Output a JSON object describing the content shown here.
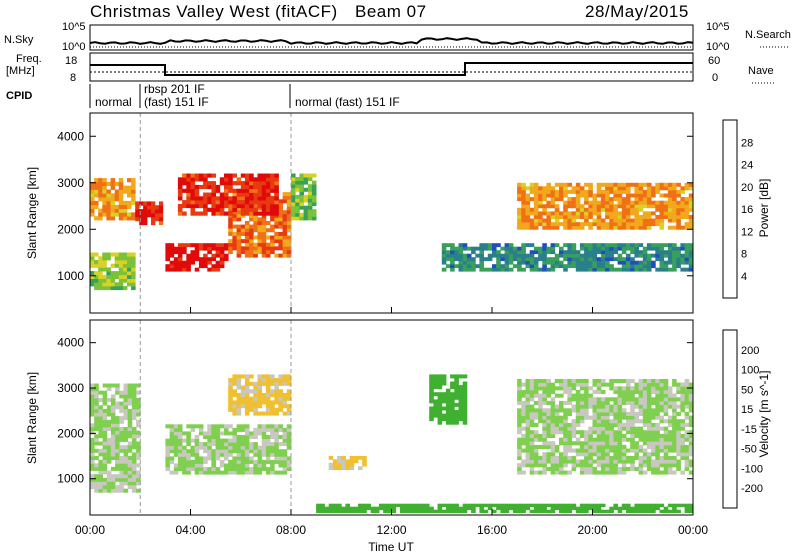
{
  "header": {
    "title": "Christmas Valley West (fitACF)",
    "beam": "Beam 07",
    "date": "28/May/2015"
  },
  "panels": {
    "nsky": {
      "label": "N.Sky",
      "right_label": "N.Search",
      "tick_top": "10^5",
      "tick_bottom": "10^0"
    },
    "freq": {
      "label_line1": "Freq.",
      "label_line2": "[MHz]",
      "right_label": "Nave",
      "left_ticks": [
        "18",
        "8"
      ],
      "right_ticks": [
        "60",
        "0"
      ]
    },
    "cpid": {
      "label": "CPID",
      "segments": [
        "normal",
        "rbsp 201 IF",
        "(fast) 151 IF",
        "normal (fast) 151 IF"
      ]
    }
  },
  "x_axis": {
    "label": "Time UT",
    "ticks": [
      "00:00",
      "04:00",
      "08:00",
      "12:00",
      "16:00",
      "20:00",
      "00:00"
    ]
  },
  "y_axis": {
    "label": "Slant Range [km]",
    "ticks": [
      "1000",
      "2000",
      "3000",
      "4000"
    ]
  },
  "colorbars": {
    "power": {
      "label": "Power [dB]",
      "ticks": [
        "4",
        "8",
        "12",
        "16",
        "20",
        "24",
        "28"
      ],
      "colors": [
        "#1010e0",
        "#1e4fbf",
        "#2a7f8c",
        "#39a05a",
        "#7cc238",
        "#d8d226",
        "#f2a81c",
        "#f07016",
        "#e83a10",
        "#e00a0a"
      ]
    },
    "velocity": {
      "label": "Velocity [m s^-1]",
      "ticks": [
        "200",
        "100",
        "50",
        "15",
        "-15",
        "-50",
        "-100",
        "-200"
      ],
      "colors": [
        "#1010d0",
        "#2050a0",
        "#208060",
        "#40b030",
        "#80d050",
        "#c8c8c0",
        "#f0c030",
        "#f0a020",
        "#f06010",
        "#e01010"
      ]
    }
  },
  "chart_data": [
    {
      "type": "heatmap",
      "title": "",
      "xlabel": "Time UT",
      "ylabel": "Slant Range [km]",
      "xlim": [
        0,
        24
      ],
      "ylim": [
        200,
        4500
      ],
      "colorbar_label": "Power [dB]",
      "color_range": [
        0,
        30
      ],
      "regions": [
        {
          "t0": 0.0,
          "t1": 1.8,
          "r0": 700,
          "r1": 1500,
          "value": 14
        },
        {
          "t0": 0.0,
          "t1": 1.8,
          "r0": 2200,
          "r1": 3100,
          "value": 20
        },
        {
          "t0": 1.8,
          "t1": 2.9,
          "r0": 2100,
          "r1": 2600,
          "value": 26
        },
        {
          "t0": 3.0,
          "t1": 5.5,
          "r0": 1100,
          "r1": 1700,
          "value": 28
        },
        {
          "t0": 5.5,
          "t1": 8.0,
          "r0": 1400,
          "r1": 2800,
          "value": 22
        },
        {
          "t0": 3.5,
          "t1": 7.5,
          "r0": 2300,
          "r1": 3200,
          "value": 26
        },
        {
          "t0": 8.0,
          "t1": 9.0,
          "r0": 2200,
          "r1": 3200,
          "value": 12
        },
        {
          "t0": 14.0,
          "t1": 24.0,
          "r0": 1100,
          "r1": 1700,
          "value": 8
        },
        {
          "t0": 17.0,
          "t1": 24.0,
          "r0": 2000,
          "r1": 3000,
          "value": 20
        }
      ]
    },
    {
      "type": "heatmap",
      "title": "",
      "xlabel": "Time UT",
      "ylabel": "Slant Range [km]",
      "xlim": [
        0,
        24
      ],
      "ylim": [
        200,
        4500
      ],
      "colorbar_label": "Velocity [m s^-1]",
      "color_range": [
        -200,
        200
      ],
      "regions": [
        {
          "t0": 0.0,
          "t1": 2.0,
          "r0": 700,
          "r1": 3100,
          "value": 0
        },
        {
          "t0": 3.0,
          "t1": 8.0,
          "r0": 1100,
          "r1": 2200,
          "value": 0
        },
        {
          "t0": 5.5,
          "t1": 8.0,
          "r0": 2400,
          "r1": 3300,
          "value": -50
        },
        {
          "t0": 9.5,
          "t1": 11.0,
          "r0": 1200,
          "r1": 1500,
          "value": -50
        },
        {
          "t0": 13.5,
          "t1": 15.0,
          "r0": 2200,
          "r1": 3300,
          "value": 50
        },
        {
          "t0": 17.0,
          "t1": 24.0,
          "r0": 1100,
          "r1": 3200,
          "value": 0
        },
        {
          "t0": 9.0,
          "t1": 24.0,
          "r0": 250,
          "r1": 450,
          "value": 50
        }
      ]
    }
  ]
}
